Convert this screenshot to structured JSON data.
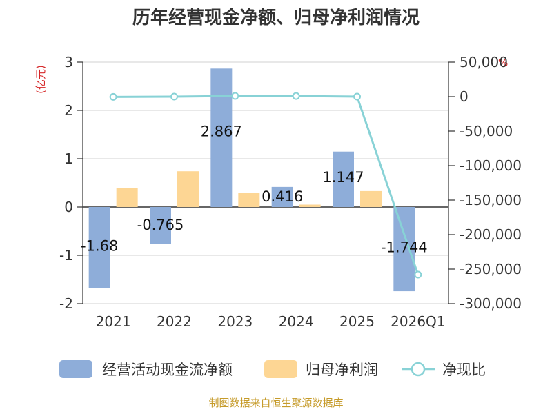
{
  "title": "历年经营现金净额、归母净利润情况",
  "source": "制图数据来自恒生聚源数据库",
  "left_unit": "(亿元)",
  "right_unit": "%",
  "colors": {
    "ocf": "#8eadd9",
    "np": "#fdd694",
    "ratio": "#88d2d6"
  },
  "chart_data": {
    "type": "bar",
    "categories": [
      "2021",
      "2022",
      "2023",
      "2024",
      "2025",
      "2026Q1"
    ],
    "series": [
      {
        "name": "经营活动现金流净额",
        "type": "bar",
        "axis": "left",
        "values": [
          -1.68,
          -0.765,
          2.867,
          0.416,
          1.147,
          -1.744
        ],
        "labels": [
          "-1.68",
          "-0.765",
          "2.867",
          "0.416",
          "1.147",
          "-1.744"
        ]
      },
      {
        "name": "归母净利润",
        "type": "bar",
        "axis": "left",
        "values": [
          0.4,
          0.74,
          0.29,
          0.05,
          0.33,
          0.0
        ]
      },
      {
        "name": "净现比",
        "type": "line",
        "axis": "right",
        "values": [
          -420,
          0,
          1000,
          830,
          0,
          -258000
        ]
      }
    ],
    "y_left": {
      "min": -2,
      "max": 3,
      "ticks": [
        -2,
        -1,
        0,
        1,
        2,
        3
      ],
      "labels": [
        "-2",
        "-1",
        "0",
        "1",
        "2",
        "3"
      ]
    },
    "y_right": {
      "min": -300000,
      "max": 50000,
      "ticks": [
        50000,
        0,
        -50000,
        -100000,
        -150000,
        -200000,
        -250000,
        -300000
      ],
      "labels": [
        "50,000",
        "0",
        "-50,000",
        "-100,000",
        "-150,000",
        "-200,000",
        "-250,000",
        "-300,000"
      ]
    },
    "grid": true,
    "legend_position": "bottom"
  }
}
